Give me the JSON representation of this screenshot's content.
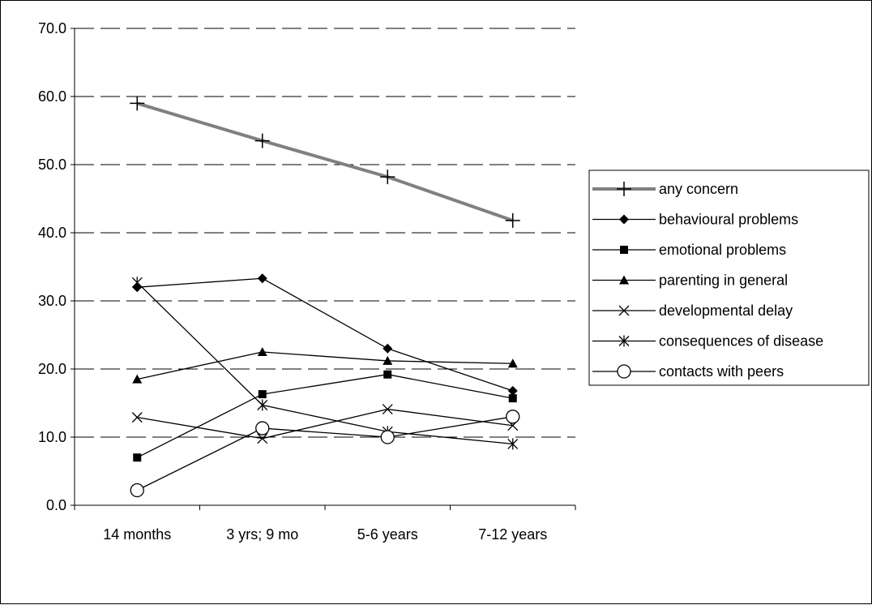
{
  "chart_data": {
    "type": "line",
    "title": "",
    "xlabel": "",
    "ylabel": "",
    "categories": [
      "14 months",
      "3 yrs; 9 mo",
      "5-6 years",
      "7-12 years"
    ],
    "ylim": [
      0,
      70
    ],
    "yticks": [
      0,
      10,
      20,
      30,
      40,
      50,
      60,
      70
    ],
    "ytick_labels": [
      "0.0",
      "10.0",
      "20.0",
      "30.0",
      "40.0",
      "50.0",
      "60.0",
      "70.0"
    ],
    "grid": "horizontal dashed",
    "legend_position": "right",
    "series": [
      {
        "name": "any concern",
        "values": [
          59.0,
          53.5,
          48.2,
          41.8
        ],
        "marker": "plus",
        "color": "#808080"
      },
      {
        "name": "behavioural problems",
        "values": [
          32.0,
          33.3,
          23.0,
          16.8
        ],
        "marker": "diamond",
        "color": "#000000"
      },
      {
        "name": "emotional problems",
        "values": [
          7.0,
          16.3,
          19.2,
          15.7
        ],
        "marker": "square",
        "color": "#000000"
      },
      {
        "name": "parenting in general",
        "values": [
          18.5,
          22.5,
          21.2,
          20.8
        ],
        "marker": "triangle",
        "color": "#000000"
      },
      {
        "name": "developmental delay",
        "values": [
          12.9,
          9.8,
          14.1,
          11.7
        ],
        "marker": "x",
        "color": "#000000"
      },
      {
        "name": "consequences of disease",
        "values": [
          32.7,
          14.7,
          10.8,
          9.0
        ],
        "marker": "asterisk",
        "color": "#000000"
      },
      {
        "name": "contacts with peers",
        "values": [
          2.2,
          11.3,
          10.0,
          13.0
        ],
        "marker": "circle",
        "color": "#000000"
      }
    ]
  }
}
